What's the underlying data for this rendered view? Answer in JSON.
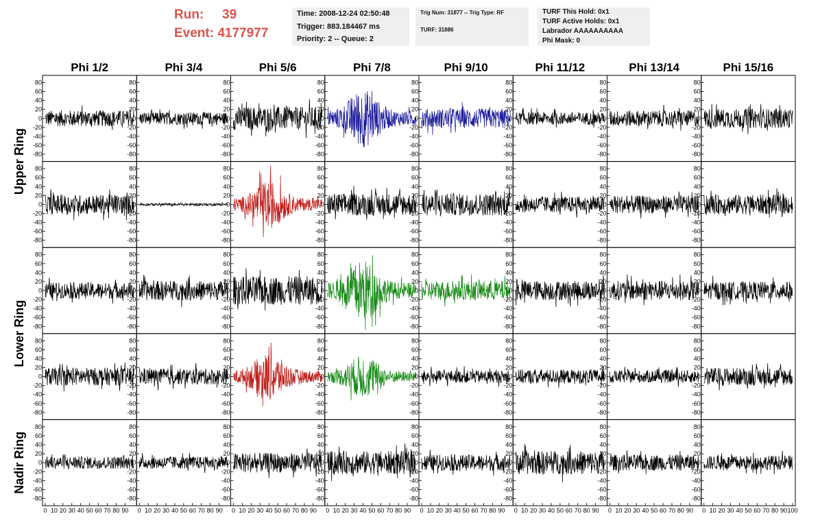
{
  "header": {
    "run_label": "Run:",
    "run_value": "39",
    "event_label": "Event:",
    "event_value": "4177977",
    "time_line": "Time: 2008-12-24 02:50:48",
    "trigger_line": "Trigger: 883.184467 ms",
    "priority_line": "Priority: 2 -- Queue: 2",
    "trig_num_line": "Trig Num: 31877 -- Trig Type: RF",
    "turf_line": "TURF: 31886",
    "turf_hold_line": "TURF This Hold: 0x1",
    "turf_active_line": "TURF Active Holds: 0x1",
    "labrador_line": "Labrador AAAAAAAAAA",
    "phi_mask_line": "Phi Mask: 0"
  },
  "chart_data": {
    "type": "line",
    "columns": [
      "Phi 1/2",
      "Phi 3/4",
      "Phi 5/6",
      "Phi 7/8",
      "Phi 9/10",
      "Phi 11/12",
      "Phi 13/14",
      "Phi 15/16"
    ],
    "ring_labels": [
      "Upper Ring",
      "Lower Ring",
      "Nadir Ring"
    ],
    "rows_per_ring": [
      2,
      2,
      1
    ],
    "ylim": [
      -90,
      90
    ],
    "y_ticks": [
      80,
      60,
      40,
      20,
      0,
      -20,
      -40,
      -60,
      -80
    ],
    "xlim": [
      0,
      100
    ],
    "x_ticks": [
      0,
      10,
      20,
      30,
      40,
      50,
      60,
      70,
      80,
      90,
      100
    ],
    "colors": {
      "default": "#000000",
      "blue": "#1f1f9e",
      "red": "#c0201c",
      "green": "#168a16"
    },
    "panels": [
      [
        {
          "amp": 18,
          "color": "default",
          "env": "flat"
        },
        {
          "amp": 14,
          "color": "default",
          "env": "flat"
        },
        {
          "amp": 26,
          "color": "default",
          "env": "flat"
        },
        {
          "amp": 55,
          "color": "blue",
          "env": "burst"
        },
        {
          "amp": 22,
          "color": "blue",
          "env": "flat"
        },
        {
          "amp": 14,
          "color": "default",
          "env": "flat"
        },
        {
          "amp": 18,
          "color": "default",
          "env": "flat"
        },
        {
          "amp": 22,
          "color": "default",
          "env": "flat"
        }
      ],
      [
        {
          "amp": 22,
          "color": "default",
          "env": "flat"
        },
        {
          "amp": 3,
          "color": "default",
          "env": "flat"
        },
        {
          "amp": 45,
          "color": "red",
          "env": "burst"
        },
        {
          "amp": 25,
          "color": "default",
          "env": "flat"
        },
        {
          "amp": 25,
          "color": "default",
          "env": "flat"
        },
        {
          "amp": 18,
          "color": "default",
          "env": "flat"
        },
        {
          "amp": 20,
          "color": "default",
          "env": "flat"
        },
        {
          "amp": 22,
          "color": "default",
          "env": "flat"
        }
      ],
      [
        {
          "amp": 18,
          "color": "default",
          "env": "flat"
        },
        {
          "amp": 22,
          "color": "default",
          "env": "flat"
        },
        {
          "amp": 32,
          "color": "default",
          "env": "flat"
        },
        {
          "amp": 58,
          "color": "green",
          "env": "burst"
        },
        {
          "amp": 22,
          "color": "green",
          "env": "flat"
        },
        {
          "amp": 22,
          "color": "default",
          "env": "flat"
        },
        {
          "amp": 22,
          "color": "default",
          "env": "flat"
        },
        {
          "amp": 20,
          "color": "default",
          "env": "flat"
        }
      ],
      [
        {
          "amp": 20,
          "color": "default",
          "env": "flat"
        },
        {
          "amp": 18,
          "color": "default",
          "env": "flat"
        },
        {
          "amp": 45,
          "color": "red",
          "env": "burst"
        },
        {
          "amp": 40,
          "color": "green",
          "env": "burst"
        },
        {
          "amp": 14,
          "color": "default",
          "env": "flat"
        },
        {
          "amp": 16,
          "color": "default",
          "env": "flat"
        },
        {
          "amp": 14,
          "color": "default",
          "env": "flat"
        },
        {
          "amp": 20,
          "color": "default",
          "env": "flat"
        }
      ],
      [
        {
          "amp": 14,
          "color": "default",
          "env": "flat"
        },
        {
          "amp": 14,
          "color": "default",
          "env": "flat"
        },
        {
          "amp": 22,
          "color": "default",
          "env": "flat"
        },
        {
          "amp": 26,
          "color": "default",
          "env": "flat"
        },
        {
          "amp": 18,
          "color": "default",
          "env": "flat"
        },
        {
          "amp": 26,
          "color": "default",
          "env": "flat"
        },
        {
          "amp": 18,
          "color": "default",
          "env": "flat"
        },
        {
          "amp": 16,
          "color": "default",
          "env": "flat"
        }
      ]
    ]
  }
}
